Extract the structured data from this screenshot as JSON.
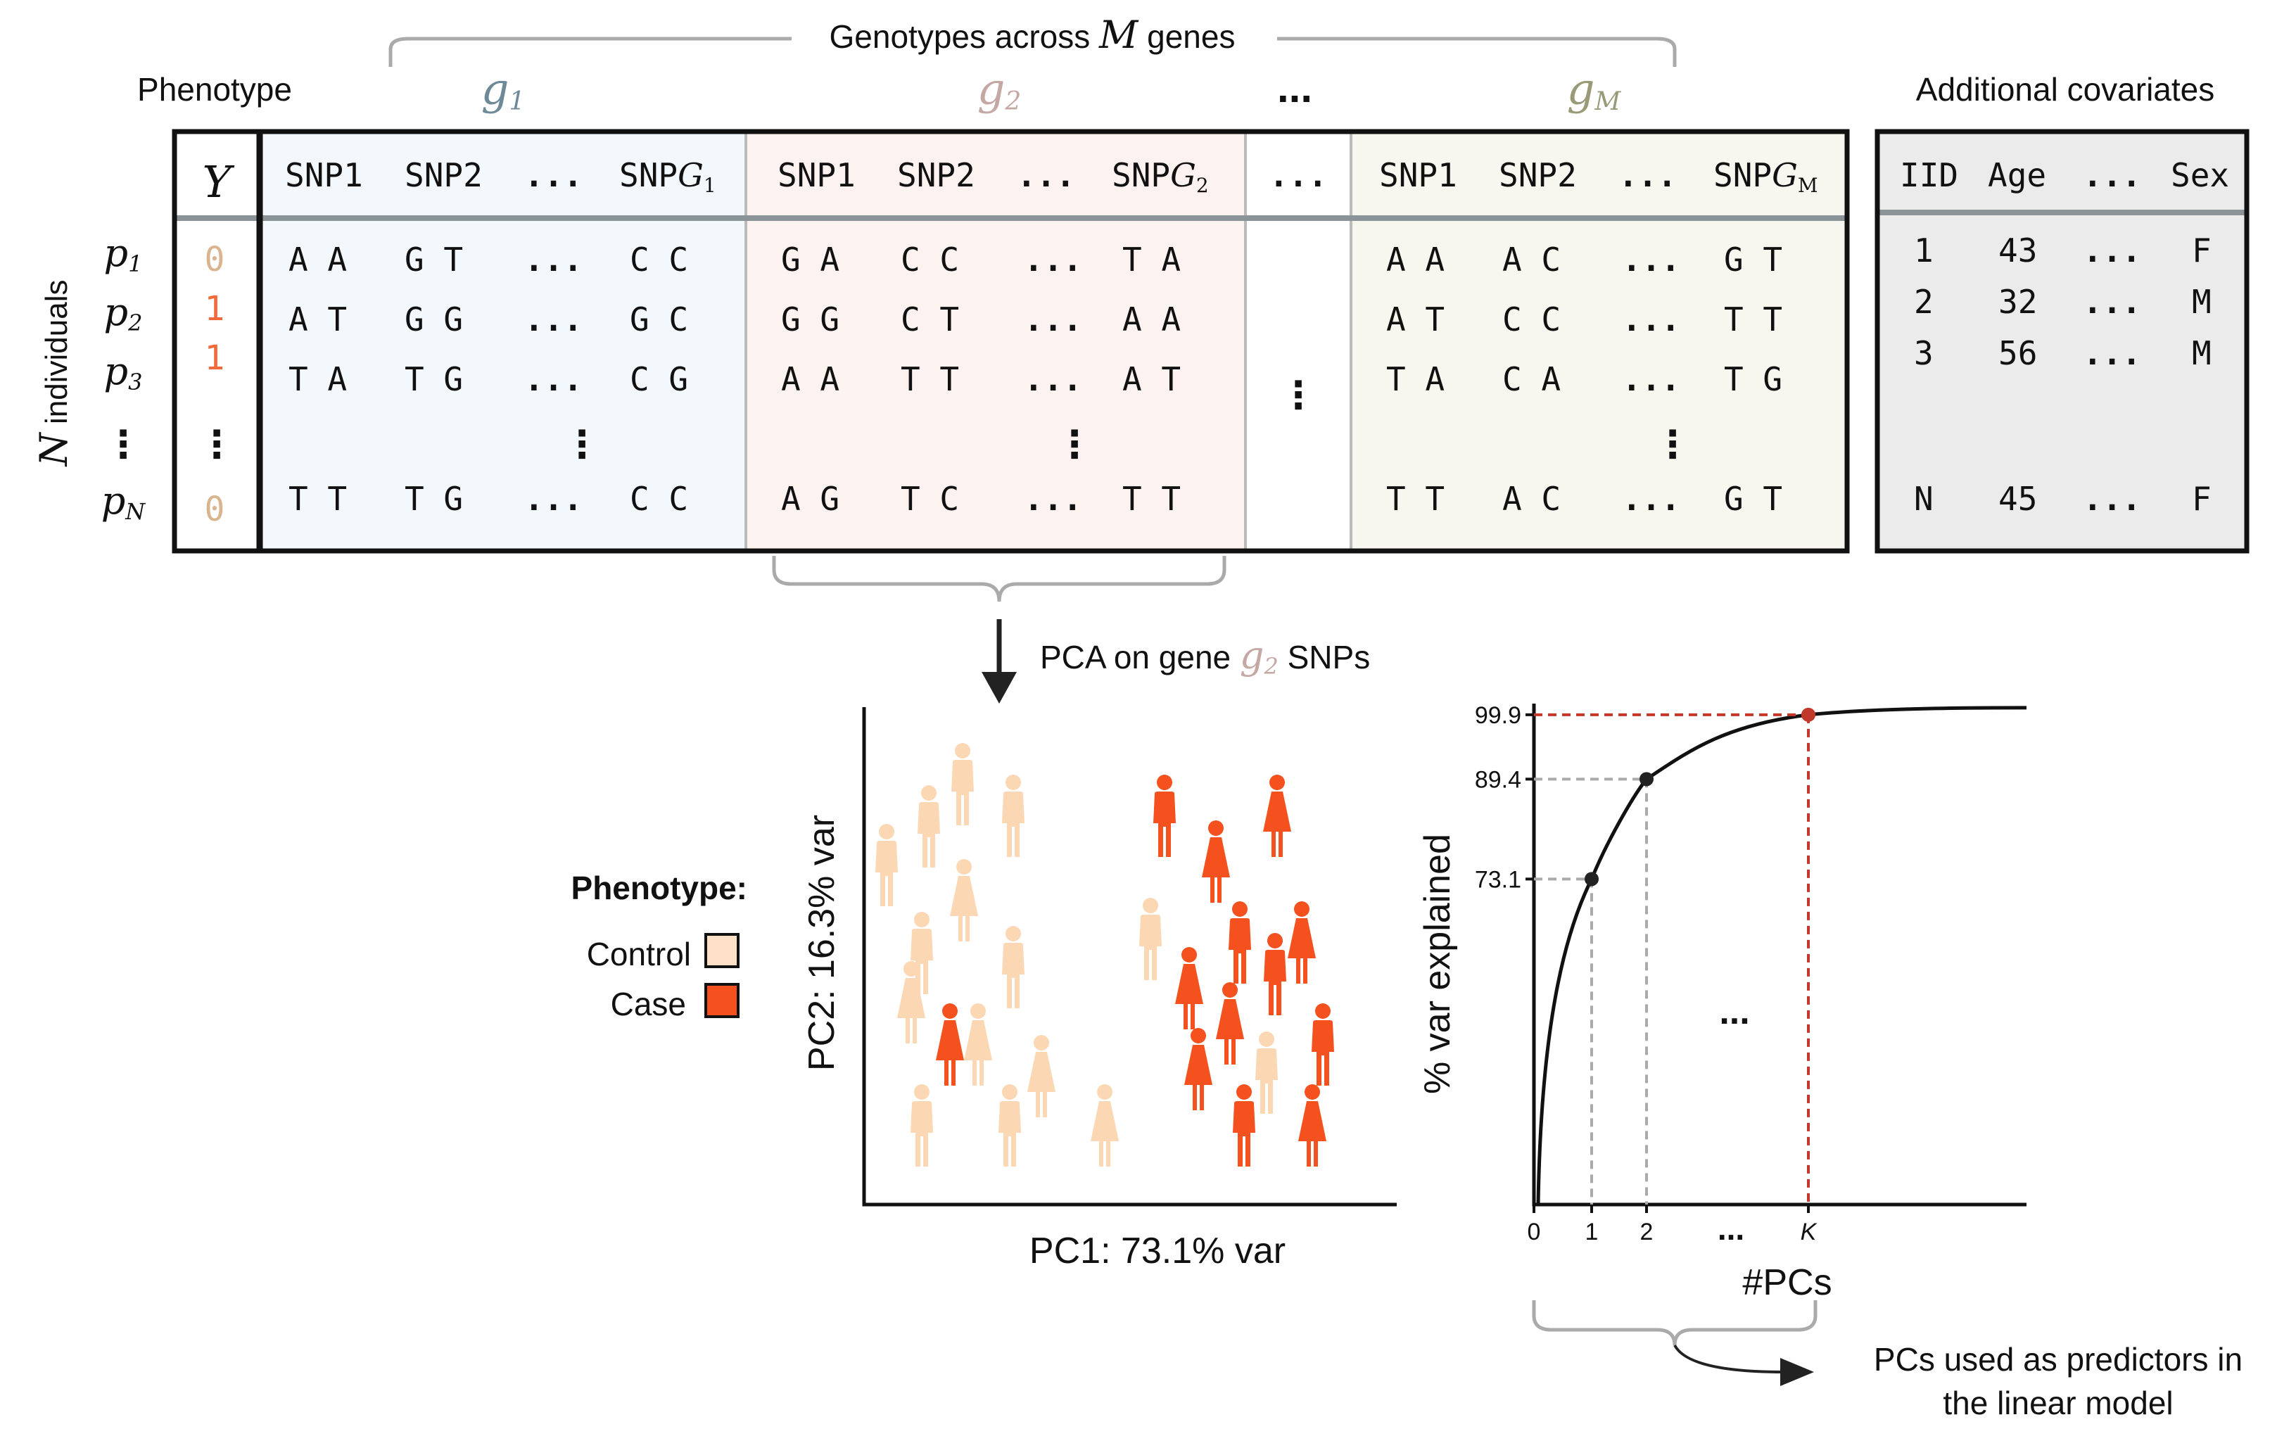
{
  "header": {
    "genotypes_prefix": "Genotypes across",
    "genotypes_var": "M",
    "genotypes_suffix": "genes",
    "phenotype_label": "Phenotype",
    "covariates_label": "Additional covariates",
    "ellipsis": "..."
  },
  "genes": [
    {
      "letter": "g",
      "sub": "1",
      "color": "#6e8a99"
    },
    {
      "letter": "g",
      "sub": "2",
      "color": "#c4a8a4"
    },
    {
      "letter": "g",
      "sub": "M",
      "color": "#9a9a78"
    }
  ],
  "phenotype_column": {
    "header": "Y",
    "values": [
      "0",
      "1",
      "1",
      "0"
    ],
    "value_colors": [
      "#d9b48f",
      "#f26a3a",
      "#f26a3a",
      "#d9b48f"
    ],
    "vdots": "⋮"
  },
  "individuals": {
    "axis_var": "N",
    "axis_label": "individuals",
    "rows": [
      {
        "p": "p",
        "sub": "1"
      },
      {
        "p": "p",
        "sub": "2"
      },
      {
        "p": "p",
        "sub": "3"
      },
      {
        "p": "p",
        "sub": "N"
      }
    ],
    "vdots": "⋮"
  },
  "gene_blocks": [
    {
      "name": "g1",
      "bg": "#f3f8fc",
      "head_snp1": "SNP1",
      "head_snp2": "SNP2",
      "head_dots": "...",
      "head_last": "SNP",
      "head_last_sub": "G",
      "head_last_subsub": "1",
      "rows": [
        [
          "A A",
          "G T",
          "...",
          "C C"
        ],
        [
          "A T",
          "G G",
          "...",
          "G C"
        ],
        [
          "T A",
          "T G",
          "...",
          "C G"
        ],
        [
          "T T",
          "T G",
          "...",
          "C C"
        ]
      ]
    },
    {
      "name": "g2",
      "bg": "#fcf2f0",
      "head_snp1": "SNP1",
      "head_snp2": "SNP2",
      "head_dots": "...",
      "head_last": "SNP",
      "head_last_sub": "G",
      "head_last_subsub": "2",
      "rows": [
        [
          "G A",
          "C C",
          "...",
          "T A"
        ],
        [
          "G G",
          "C T",
          "...",
          "A A"
        ],
        [
          "A A",
          "T T",
          "...",
          "A T"
        ],
        [
          "A G",
          "T C",
          "...",
          "T T"
        ]
      ]
    },
    {
      "name": "gM",
      "bg": "#f8f7ef",
      "head_snp1": "SNP1",
      "head_snp2": "SNP2",
      "head_dots": "...",
      "head_last": "SNP",
      "head_last_sub": "G",
      "head_last_subsub": "M",
      "rows": [
        [
          "A A",
          "A C",
          "...",
          "G T"
        ],
        [
          "A T",
          "C C",
          "...",
          "T T"
        ],
        [
          "T A",
          "C A",
          "...",
          "T G"
        ],
        [
          "T T",
          "A C",
          "...",
          "G T"
        ]
      ]
    }
  ],
  "middle_block": {
    "head": "...",
    "vdots": "⋮"
  },
  "covariates": {
    "bg": "#ebebeb",
    "headers": [
      "IID",
      "Age",
      "...",
      "Sex"
    ],
    "rows": [
      [
        "1",
        "43",
        "...",
        "F"
      ],
      [
        "2",
        "32",
        "...",
        "M"
      ],
      [
        "3",
        "56",
        "...",
        "M"
      ],
      [
        "N",
        "45",
        "...",
        "F"
      ]
    ]
  },
  "pca": {
    "arrow_label_prefix": "PCA on gene",
    "arrow_label_gene": "g",
    "arrow_label_sub": "2",
    "arrow_label_suffix": "SNPs",
    "xlabel": "PC1: 73.1% var",
    "ylabel": "PC2: 16.3% var",
    "legend_title": "Phenotype:",
    "legend": [
      {
        "label": "Control",
        "color": "#fde0c5"
      },
      {
        "label": "Case",
        "color": "#f4511e"
      }
    ],
    "control_color": "#fbd7b4",
    "case_color": "#f4511e"
  },
  "chart_data": {
    "type": "line",
    "xlabel": "#PCs",
    "ylabel": "% var explained",
    "x_ticks": [
      "0",
      "1",
      "2",
      "...",
      "K"
    ],
    "highlighted_points": [
      {
        "x": "1",
        "y": 73.1,
        "label": "73.1",
        "color": "#222222"
      },
      {
        "x": "2",
        "y": 89.4,
        "label": "89.4",
        "color": "#222222"
      },
      {
        "x": "K",
        "y": 99.9,
        "label": "99.9",
        "color": "#c0392b"
      }
    ],
    "annotation": "..."
  },
  "footer": {
    "line1": "PCs used as predictors in",
    "line2": "the linear model"
  }
}
